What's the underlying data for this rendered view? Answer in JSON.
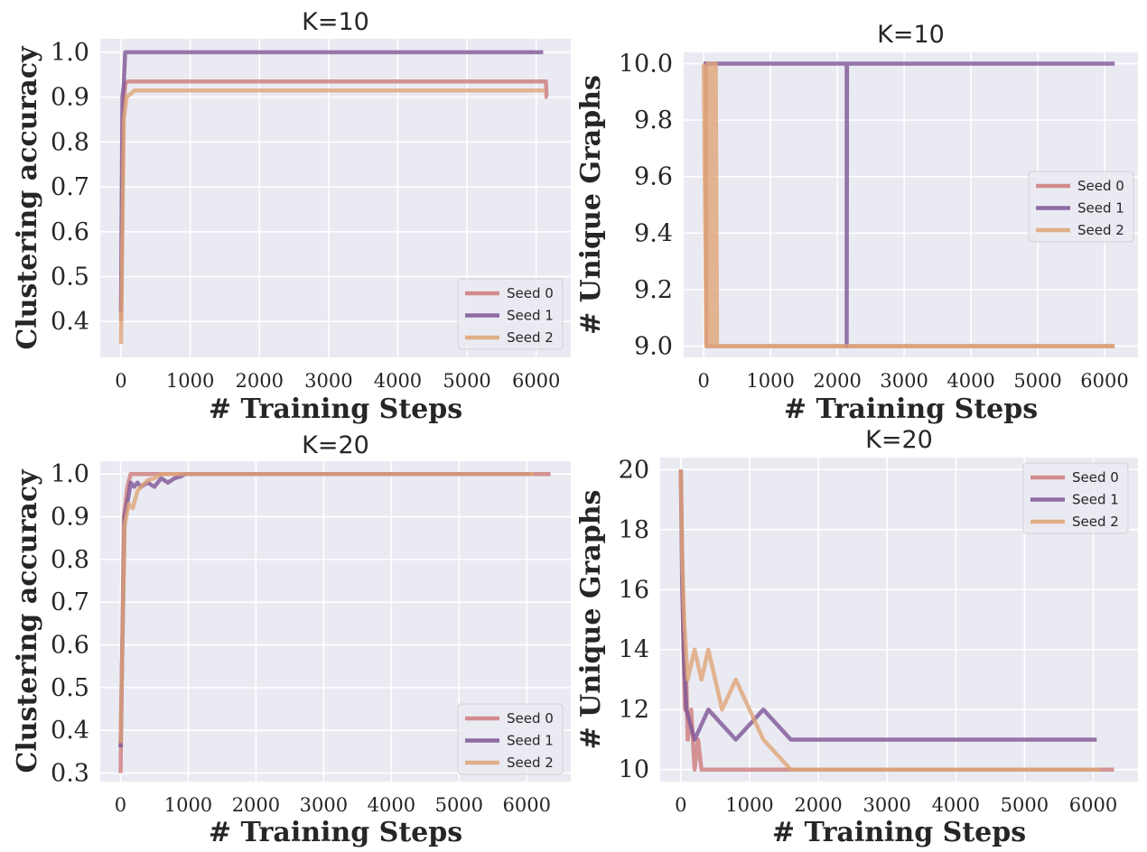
{
  "chart_data": [
    {
      "type": "line",
      "title": "K=10",
      "xlabel": "# Training Steps",
      "ylabel": "Clustering accuracy",
      "xlim": [
        -300,
        6500
      ],
      "ylim": [
        0.32,
        1.03
      ],
      "xticks": [
        0,
        1000,
        2000,
        3000,
        4000,
        5000,
        6000
      ],
      "yticks": [
        0.4,
        0.5,
        0.6,
        0.7,
        0.8,
        0.9,
        1.0
      ],
      "ytick_labels": [
        "0.4",
        "0.5",
        "0.6",
        "0.7",
        "0.8",
        "0.9",
        "1.0"
      ],
      "legend": "lower-right",
      "grid": true,
      "series": [
        {
          "name": "Seed 0",
          "color": "#cd7b7b",
          "x": [
            0,
            30,
            60,
            100,
            6140,
            6150,
            6160
          ],
          "y": [
            0.4,
            0.85,
            0.93,
            0.935,
            0.935,
            0.9,
            0.9
          ]
        },
        {
          "name": "Seed 1",
          "color": "#7e5596",
          "x": [
            0,
            20,
            40,
            60,
            6100
          ],
          "y": [
            0.42,
            0.9,
            0.93,
            1.0,
            1.0
          ]
        },
        {
          "name": "Seed 2",
          "color": "#dea577",
          "x": [
            0,
            40,
            80,
            120,
            200,
            6120
          ],
          "y": [
            0.35,
            0.85,
            0.9,
            0.905,
            0.915,
            0.915
          ]
        }
      ]
    },
    {
      "type": "line",
      "title": "K=10",
      "xlabel": "# Training Steps",
      "ylabel": "# Unique Graphs",
      "xlim": [
        -300,
        6500
      ],
      "ylim": [
        8.96,
        10.04
      ],
      "xticks": [
        0,
        1000,
        2000,
        3000,
        4000,
        5000,
        6000
      ],
      "yticks": [
        9.0,
        9.2,
        9.4,
        9.6,
        9.8,
        10.0
      ],
      "ytick_labels": [
        "9.0",
        "9.2",
        "9.4",
        "9.6",
        "9.8",
        "10.0"
      ],
      "legend": "center-right",
      "grid": true,
      "series": [
        {
          "name": "Seed 0",
          "color": "#cd7b7b",
          "x": [
            0,
            30,
            40,
            6150
          ],
          "y": [
            10,
            10,
            9,
            9
          ]
        },
        {
          "name": "Seed 1",
          "color": "#7e5596",
          "x": [
            0,
            2140,
            2140,
            2145,
            6150
          ],
          "y": [
            10,
            10,
            9,
            10,
            10
          ]
        },
        {
          "name": "Seed 2",
          "color": "#dea577",
          "x": [
            0,
            40,
            60,
            80,
            100,
            120,
            140,
            160,
            180,
            200,
            6150
          ],
          "y": [
            10,
            9,
            10,
            9,
            10,
            9,
            10,
            9,
            10,
            9,
            9
          ]
        }
      ]
    },
    {
      "type": "line",
      "title": "K=20",
      "xlabel": "# Training Steps",
      "ylabel": "Clustering accuracy",
      "xlim": [
        -300,
        6650
      ],
      "ylim": [
        0.28,
        1.03
      ],
      "xticks": [
        0,
        1000,
        2000,
        3000,
        4000,
        5000,
        6000
      ],
      "yticks": [
        0.3,
        0.4,
        0.5,
        0.6,
        0.7,
        0.8,
        0.9,
        1.0
      ],
      "ytick_labels": [
        "0.3",
        "0.4",
        "0.5",
        "0.6",
        "0.7",
        "0.8",
        "0.9",
        "1.0"
      ],
      "legend": "lower-right",
      "grid": true,
      "series": [
        {
          "name": "Seed 0",
          "color": "#cd7b7b",
          "x": [
            0,
            50,
            100,
            150,
            6350
          ],
          "y": [
            0.3,
            0.9,
            0.97,
            1.0,
            1.0
          ]
        },
        {
          "name": "Seed 1",
          "color": "#7e5596",
          "x": [
            0,
            60,
            120,
            150,
            200,
            250,
            300,
            400,
            500,
            600,
            700,
            800,
            900,
            950,
            6050
          ],
          "y": [
            0.36,
            0.9,
            0.95,
            0.98,
            0.97,
            0.98,
            0.97,
            0.98,
            0.97,
            0.99,
            0.98,
            0.99,
            0.995,
            1.0,
            1.0
          ]
        },
        {
          "name": "Seed 2",
          "color": "#dea577",
          "x": [
            0,
            60,
            120,
            180,
            250,
            300,
            400,
            500,
            600,
            700,
            6100
          ],
          "y": [
            0.37,
            0.88,
            0.93,
            0.92,
            0.96,
            0.97,
            0.985,
            0.99,
            1.0,
            1.0,
            1.0
          ]
        }
      ]
    },
    {
      "type": "line",
      "title": "K=20",
      "xlabel": "# Training Steps",
      "ylabel": "# Unique Graphs",
      "xlim": [
        -300,
        6650
      ],
      "ylim": [
        9.6,
        20.4
      ],
      "xticks": [
        0,
        1000,
        2000,
        3000,
        4000,
        5000,
        6000
      ],
      "yticks": [
        10,
        12,
        14,
        16,
        18,
        20
      ],
      "ytick_labels": [
        "10",
        "12",
        "14",
        "16",
        "18",
        "20"
      ],
      "legend": "upper-right",
      "grid": true,
      "series": [
        {
          "name": "Seed 0",
          "color": "#cd7b7b",
          "x": [
            0,
            20,
            40,
            60,
            80,
            100,
            150,
            200,
            250,
            300,
            6300
          ],
          "y": [
            20,
            17,
            14,
            12,
            13,
            11,
            12,
            10,
            11,
            10,
            10
          ]
        },
        {
          "name": "Seed 1",
          "color": "#7e5596",
          "x": [
            0,
            20,
            40,
            80,
            200,
            400,
            800,
            1200,
            1600,
            1850,
            2500,
            4000,
            6050
          ],
          "y": [
            20,
            16,
            14,
            12,
            11,
            12,
            11,
            12,
            11,
            11,
            11,
            11,
            11
          ]
        },
        {
          "name": "Seed 2",
          "color": "#dea577",
          "x": [
            0,
            20,
            50,
            100,
            200,
            300,
            400,
            600,
            800,
            1000,
            1200,
            1600,
            6100
          ],
          "y": [
            20,
            17,
            15,
            13,
            14,
            13,
            14,
            12,
            13,
            12,
            11,
            10,
            10
          ]
        }
      ]
    }
  ]
}
